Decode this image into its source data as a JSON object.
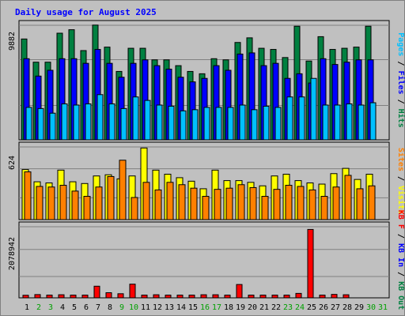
{
  "chart_data": {
    "type": "bar",
    "title": "Daily usage for August 2025",
    "days": [
      "1",
      "2",
      "3",
      "4",
      "5",
      "6",
      "7",
      "8",
      "9",
      "10",
      "11",
      "12",
      "13",
      "14",
      "15",
      "16",
      "17",
      "18",
      "19",
      "20",
      "21",
      "22",
      "23",
      "24",
      "25",
      "26",
      "27",
      "28",
      "29",
      "30",
      "31"
    ],
    "weekend_days": [
      "2",
      "3",
      "9",
      "10",
      "16",
      "17",
      "23",
      "24",
      "30",
      "31"
    ],
    "colors": {
      "hits": "#008040",
      "files": "#0000ff",
      "pages": "#00c0ff",
      "visits": "#ffff00",
      "sites": "#ff8000",
      "kbin": "#0000ff",
      "kbout": "#008040",
      "kbf": "#ff0000",
      "title": "#0000ff",
      "weekday_label": "#000000",
      "weekend_label": "#00a000",
      "panel_bg": "#c0c0c0"
    },
    "panels": [
      {
        "id": "hits-files-pages",
        "ymax_label": "9882",
        "ymax": 9882,
        "right_labels": [
          {
            "text": "Pages",
            "color": "#00c0ff"
          },
          {
            "text": " / ",
            "color": "#000000"
          },
          {
            "text": "Files",
            "color": "#0000ff"
          },
          {
            "text": " / ",
            "color": "#000000"
          },
          {
            "text": "Hits",
            "color": "#008040"
          }
        ],
        "series": [
          {
            "key": "hits",
            "values": [
              8700,
              6700,
              6700,
              9200,
              9500,
              7700,
              9900,
              8000,
              5900,
              7900,
              7900,
              6900,
              6900,
              6400,
              5900,
              5700,
              7000,
              6900,
              8400,
              8800,
              7900,
              7800,
              7100,
              9800,
              6800,
              8900,
              7800,
              7900,
              8000,
              9800,
              null
            ]
          },
          {
            "key": "files",
            "values": [
              7000,
              5500,
              6000,
              7000,
              7000,
              6600,
              7800,
              6600,
              5400,
              6600,
              6900,
              6400,
              6100,
              5400,
              5000,
              5300,
              6400,
              6000,
              7400,
              7500,
              6400,
              6600,
              5300,
              5700,
              4900,
              7000,
              6500,
              6700,
              6900,
              6900,
              null
            ]
          },
          {
            "key": "pages",
            "values": [
              2800,
              2700,
              2300,
              3100,
              3000,
              3100,
              3900,
              3100,
              2700,
              3700,
              3400,
              3000,
              2900,
              2500,
              2600,
              2800,
              2800,
              2800,
              3000,
              2600,
              2900,
              2800,
              3700,
              3700,
              5300,
              3000,
              3000,
              3100,
              3000,
              3200,
              null
            ]
          }
        ]
      },
      {
        "id": "visits-sites",
        "ymax_label": "624",
        "ymax": 624,
        "right_labels": [
          {
            "text": "Sites",
            "color": "#ff8000"
          },
          {
            "text": " / ",
            "color": "#000000"
          },
          {
            "text": "Visits",
            "color": "#ffff00"
          }
        ],
        "series": [
          {
            "key": "visits",
            "values": [
              430,
              325,
              315,
              425,
              325,
              310,
              375,
              385,
              350,
              375,
              615,
              425,
              390,
              360,
              330,
              265,
              425,
              335,
              335,
              320,
              290,
              375,
              390,
              335,
              315,
              305,
              395,
              440,
              345,
              390,
              null
            ]
          },
          {
            "key": "sites",
            "values": [
              410,
              285,
              280,
              295,
              245,
              200,
              280,
              370,
              510,
              190,
              320,
              255,
              320,
              300,
              270,
              200,
              260,
              270,
              300,
              275,
              200,
              260,
              295,
              285,
              255,
              200,
              280,
              380,
              265,
              290,
              null
            ]
          }
        ]
      },
      {
        "id": "kbytes",
        "ymax_label": "2078942",
        "ymax": 2078942,
        "right_labels": [
          {
            "text": "KB F",
            "color": "#ff0000"
          },
          {
            "text": " / ",
            "color": "#000000"
          },
          {
            "text": "KB In",
            "color": "#0000ff"
          },
          {
            "text": " / ",
            "color": "#000000"
          },
          {
            "text": "KB Out",
            "color": "#008040"
          }
        ],
        "series": [
          {
            "key": "kbf",
            "values": [
              75000,
              95000,
              80000,
              90000,
              80000,
              80000,
              340000,
              150000,
              120000,
              400000,
              80000,
              90000,
              80000,
              80000,
              80000,
              90000,
              90000,
              80000,
              390000,
              80000,
              80000,
              80000,
              80000,
              130000,
              2000000,
              80000,
              100000,
              90000,
              null,
              null,
              null
            ]
          }
        ]
      }
    ]
  }
}
